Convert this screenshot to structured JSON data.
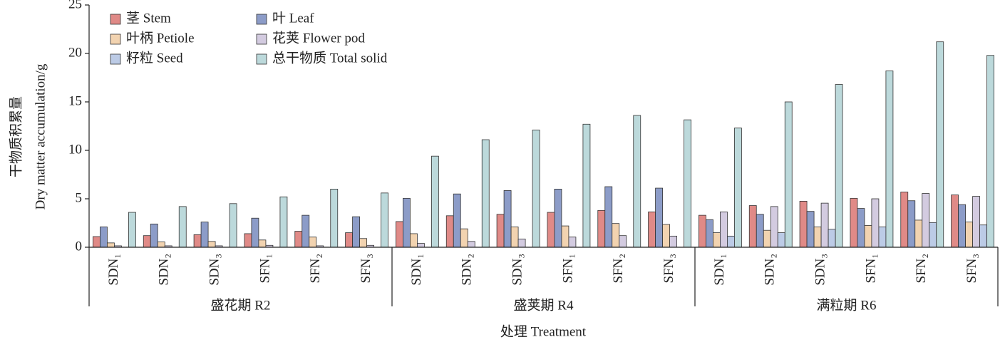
{
  "chart_data": {
    "type": "bar",
    "ylabel": [
      "干物质积累量",
      "Dry matter accumulation/g"
    ],
    "xlabel": "处理 Treatment",
    "categories": [
      "SDN₁",
      "SDN₂",
      "SDN₃",
      "SFN₁",
      "SFN₂",
      "SFN₃",
      "SDN₁",
      "SDN₂",
      "SDN₃",
      "SFN₁",
      "SFN₂",
      "SFN₃",
      "SDN₁",
      "SDN₂",
      "SDN₃",
      "SFN₁",
      "SFN₂",
      "SFN₃"
    ],
    "groups": [
      "盛花期 R2",
      "盛荚期 R4",
      "满粒期 R6"
    ],
    "series": [
      {
        "name": "茎 Stem",
        "color": "#e08a87",
        "values": [
          1.1,
          1.2,
          1.3,
          1.4,
          1.65,
          1.5,
          2.65,
          3.25,
          3.4,
          3.6,
          3.8,
          3.65,
          3.3,
          4.3,
          4.75,
          5.05,
          5.7,
          5.4
        ]
      },
      {
        "name": "叶 Leaf",
        "color": "#8c9cc8",
        "values": [
          2.1,
          2.4,
          2.6,
          3.0,
          3.3,
          3.15,
          5.05,
          5.5,
          5.85,
          6.0,
          6.25,
          6.1,
          2.85,
          3.4,
          3.7,
          4.0,
          4.8,
          4.4
        ]
      },
      {
        "name": "叶柄 Petiole",
        "color": "#f2d3b0",
        "values": [
          0.45,
          0.55,
          0.6,
          0.75,
          1.05,
          0.9,
          1.4,
          1.9,
          2.1,
          2.2,
          2.45,
          2.35,
          1.5,
          1.75,
          2.1,
          2.25,
          2.8,
          2.6
        ]
      },
      {
        "name": "花荚 Flower pod",
        "color": "#d3cbe0",
        "values": [
          0.15,
          0.15,
          0.15,
          0.2,
          0.15,
          0.2,
          0.4,
          0.6,
          0.85,
          1.05,
          1.2,
          1.15,
          3.65,
          4.2,
          4.55,
          5.0,
          5.55,
          5.25
        ]
      },
      {
        "name": "籽粒 Seed",
        "color": "#bccbe6",
        "values": [
          null,
          null,
          null,
          null,
          null,
          null,
          null,
          null,
          null,
          null,
          null,
          null,
          1.15,
          1.5,
          1.85,
          2.1,
          2.55,
          2.3
        ]
      },
      {
        "name": "总干物质 Total solid",
        "color": "#bcd9db",
        "values": [
          3.6,
          4.2,
          4.5,
          5.2,
          6.0,
          5.6,
          9.4,
          11.1,
          12.1,
          12.7,
          13.6,
          13.15,
          12.3,
          15.0,
          16.8,
          18.2,
          21.2,
          19.8
        ]
      }
    ],
    "ylim": [
      0,
      25
    ],
    "yticks": [
      0,
      5,
      10,
      15,
      20,
      25
    ],
    "legend": "upper left"
  }
}
